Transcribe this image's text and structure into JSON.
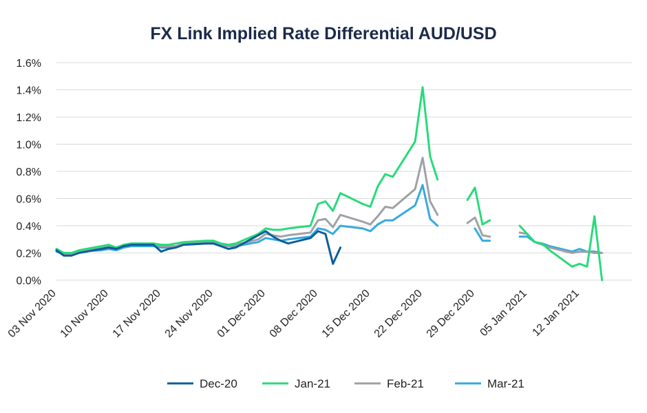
{
  "chart_data": {
    "type": "line",
    "title": "FX Link Implied Rate Differential AUD/USD",
    "xlabel": "",
    "ylabel": "",
    "ylim": [
      0,
      1.6
    ],
    "yticks": [
      "0.0%",
      "0.2%",
      "0.4%",
      "0.6%",
      "0.8%",
      "1.0%",
      "1.2%",
      "1.4%",
      "1.6%"
    ],
    "xlim": [
      "2020-11-03",
      "2021-01-19"
    ],
    "xticks": [
      {
        "date": "2020-11-03",
        "label": "03 Nov 2020"
      },
      {
        "date": "2020-11-10",
        "label": "10 Nov 2020"
      },
      {
        "date": "2020-11-17",
        "label": "17 Nov 2020"
      },
      {
        "date": "2020-11-24",
        "label": "24 Nov 2020"
      },
      {
        "date": "2020-12-01",
        "label": "01 Dec 2020"
      },
      {
        "date": "2020-12-08",
        "label": "08 Dec 2020"
      },
      {
        "date": "2020-12-15",
        "label": "15 Dec 2020"
      },
      {
        "date": "2020-12-22",
        "label": "22 Dec 2020"
      },
      {
        "date": "2020-12-29",
        "label": "29 Dec 2020"
      },
      {
        "date": "2021-01-05",
        "label": "05 Jan 2021"
      },
      {
        "date": "2021-01-12",
        "label": "12 Jan 2021"
      }
    ],
    "grid": "horizontal",
    "legend_position": "bottom",
    "series": [
      {
        "name": "Dec-20",
        "color": "#0e5d99",
        "segments": [
          [
            [
              "2020-11-03",
              0.22
            ],
            [
              "2020-11-04",
              0.18
            ],
            [
              "2020-11-05",
              0.18
            ],
            [
              "2020-11-06",
              0.2
            ],
            [
              "2020-11-09",
              0.23
            ],
            [
              "2020-11-10",
              0.24
            ],
            [
              "2020-11-11",
              0.23
            ],
            [
              "2020-11-12",
              0.25
            ],
            [
              "2020-11-13",
              0.26
            ],
            [
              "2020-11-16",
              0.26
            ],
            [
              "2020-11-17",
              0.21
            ],
            [
              "2020-11-18",
              0.23
            ],
            [
              "2020-11-19",
              0.24
            ],
            [
              "2020-11-20",
              0.26
            ],
            [
              "2020-11-23",
              0.27
            ],
            [
              "2020-11-24",
              0.27
            ],
            [
              "2020-11-25",
              0.25
            ],
            [
              "2020-11-26",
              0.23
            ],
            [
              "2020-11-27",
              0.24
            ],
            [
              "2020-11-30",
              0.33
            ],
            [
              "2020-12-01",
              0.36
            ],
            [
              "2020-12-02",
              0.32
            ],
            [
              "2020-12-03",
              0.29
            ],
            [
              "2020-12-04",
              0.27
            ],
            [
              "2020-12-07",
              0.31
            ],
            [
              "2020-12-08",
              0.36
            ],
            [
              "2020-12-09",
              0.34
            ],
            [
              "2020-12-10",
              0.12
            ],
            [
              "2020-12-11",
              0.24
            ]
          ]
        ]
      },
      {
        "name": "Jan-21",
        "color": "#27db7a",
        "segments": [
          [
            [
              "2020-11-03",
              0.23
            ],
            [
              "2020-11-04",
              0.2
            ],
            [
              "2020-11-05",
              0.2
            ],
            [
              "2020-11-06",
              0.22
            ],
            [
              "2020-11-09",
              0.25
            ],
            [
              "2020-11-10",
              0.26
            ],
            [
              "2020-11-11",
              0.24
            ],
            [
              "2020-11-12",
              0.26
            ],
            [
              "2020-11-13",
              0.27
            ],
            [
              "2020-11-16",
              0.27
            ],
            [
              "2020-11-17",
              0.26
            ],
            [
              "2020-11-18",
              0.26
            ],
            [
              "2020-11-19",
              0.27
            ],
            [
              "2020-11-20",
              0.28
            ],
            [
              "2020-11-23",
              0.29
            ],
            [
              "2020-11-24",
              0.29
            ],
            [
              "2020-11-25",
              0.27
            ],
            [
              "2020-11-26",
              0.26
            ],
            [
              "2020-11-27",
              0.27
            ],
            [
              "2020-11-30",
              0.34
            ],
            [
              "2020-12-01",
              0.38
            ],
            [
              "2020-12-02",
              0.37
            ],
            [
              "2020-12-03",
              0.37
            ],
            [
              "2020-12-04",
              0.38
            ],
            [
              "2020-12-07",
              0.4
            ],
            [
              "2020-12-08",
              0.56
            ],
            [
              "2020-12-09",
              0.58
            ],
            [
              "2020-12-10",
              0.51
            ],
            [
              "2020-12-11",
              0.64
            ],
            [
              "2020-12-14",
              0.56
            ],
            [
              "2020-12-15",
              0.54
            ],
            [
              "2020-12-16",
              0.69
            ],
            [
              "2020-12-17",
              0.78
            ],
            [
              "2020-12-18",
              0.76
            ],
            [
              "2020-12-21",
              1.02
            ],
            [
              "2020-12-22",
              1.42
            ],
            [
              "2020-12-23",
              0.91
            ],
            [
              "2020-12-24",
              0.74
            ]
          ],
          [
            [
              "2020-12-28",
              0.59
            ],
            [
              "2020-12-29",
              0.68
            ],
            [
              "2020-12-30",
              0.41
            ],
            [
              "2020-12-31",
              0.44
            ]
          ],
          [
            [
              "2021-01-04",
              0.4
            ],
            [
              "2021-01-05",
              0.34
            ],
            [
              "2021-01-06",
              0.28
            ],
            [
              "2021-01-07",
              0.27
            ],
            [
              "2021-01-08",
              0.22
            ],
            [
              "2021-01-11",
              0.1
            ],
            [
              "2021-01-12",
              0.12
            ],
            [
              "2021-01-13",
              0.1
            ],
            [
              "2021-01-14",
              0.47
            ],
            [
              "2021-01-15",
              0.0
            ]
          ]
        ]
      },
      {
        "name": "Feb-21",
        "color": "#9ea1a6",
        "segments": [
          [
            [
              "2020-11-03",
              0.22
            ],
            [
              "2020-11-04",
              0.19
            ],
            [
              "2020-11-05",
              0.19
            ],
            [
              "2020-11-06",
              0.21
            ],
            [
              "2020-11-09",
              0.24
            ],
            [
              "2020-11-10",
              0.25
            ],
            [
              "2020-11-11",
              0.23
            ],
            [
              "2020-11-12",
              0.26
            ],
            [
              "2020-11-13",
              0.27
            ],
            [
              "2020-11-16",
              0.27
            ],
            [
              "2020-11-17",
              0.25
            ],
            [
              "2020-11-18",
              0.25
            ],
            [
              "2020-11-19",
              0.25
            ],
            [
              "2020-11-20",
              0.27
            ],
            [
              "2020-11-23",
              0.28
            ],
            [
              "2020-11-24",
              0.28
            ],
            [
              "2020-11-25",
              0.26
            ],
            [
              "2020-11-26",
              0.25
            ],
            [
              "2020-11-27",
              0.26
            ],
            [
              "2020-11-30",
              0.3
            ],
            [
              "2020-12-01",
              0.34
            ],
            [
              "2020-12-02",
              0.33
            ],
            [
              "2020-12-03",
              0.32
            ],
            [
              "2020-12-04",
              0.33
            ],
            [
              "2020-12-07",
              0.35
            ],
            [
              "2020-12-08",
              0.44
            ],
            [
              "2020-12-09",
              0.45
            ],
            [
              "2020-12-10",
              0.39
            ],
            [
              "2020-12-11",
              0.48
            ],
            [
              "2020-12-14",
              0.43
            ],
            [
              "2020-12-15",
              0.41
            ],
            [
              "2020-12-16",
              0.47
            ],
            [
              "2020-12-17",
              0.54
            ],
            [
              "2020-12-18",
              0.53
            ],
            [
              "2020-12-21",
              0.67
            ],
            [
              "2020-12-22",
              0.9
            ],
            [
              "2020-12-23",
              0.58
            ],
            [
              "2020-12-24",
              0.48
            ]
          ],
          [
            [
              "2020-12-28",
              0.42
            ],
            [
              "2020-12-29",
              0.46
            ],
            [
              "2020-12-30",
              0.33
            ],
            [
              "2020-12-31",
              0.32
            ]
          ],
          [
            [
              "2021-01-04",
              0.35
            ],
            [
              "2021-01-05",
              0.34
            ],
            [
              "2021-01-06",
              0.28
            ],
            [
              "2021-01-07",
              0.26
            ],
            [
              "2021-01-08",
              0.24
            ],
            [
              "2021-01-11",
              0.2
            ],
            [
              "2021-01-12",
              0.21
            ],
            [
              "2021-01-13",
              0.21
            ],
            [
              "2021-01-14",
              0.2
            ],
            [
              "2021-01-15",
              0.2
            ]
          ]
        ]
      },
      {
        "name": "Mar-21",
        "color": "#35a9e0",
        "segments": [
          [
            [
              "2020-11-03",
              0.21
            ],
            [
              "2020-11-04",
              0.19
            ],
            [
              "2020-11-05",
              0.19
            ],
            [
              "2020-11-06",
              0.21
            ],
            [
              "2020-11-09",
              0.22
            ],
            [
              "2020-11-10",
              0.23
            ],
            [
              "2020-11-11",
              0.22
            ],
            [
              "2020-11-12",
              0.24
            ],
            [
              "2020-11-13",
              0.25
            ],
            [
              "2020-11-16",
              0.25
            ],
            [
              "2020-11-17",
              0.24
            ],
            [
              "2020-11-18",
              0.24
            ],
            [
              "2020-11-19",
              0.25
            ],
            [
              "2020-11-20",
              0.26
            ],
            [
              "2020-11-23",
              0.27
            ],
            [
              "2020-11-24",
              0.27
            ],
            [
              "2020-11-25",
              0.25
            ],
            [
              "2020-11-26",
              0.25
            ],
            [
              "2020-11-27",
              0.25
            ],
            [
              "2020-11-30",
              0.28
            ],
            [
              "2020-12-01",
              0.31
            ],
            [
              "2020-12-02",
              0.3
            ],
            [
              "2020-12-03",
              0.29
            ],
            [
              "2020-12-04",
              0.3
            ],
            [
              "2020-12-07",
              0.32
            ],
            [
              "2020-12-08",
              0.38
            ],
            [
              "2020-12-09",
              0.37
            ],
            [
              "2020-12-10",
              0.34
            ],
            [
              "2020-12-11",
              0.4
            ],
            [
              "2020-12-14",
              0.38
            ],
            [
              "2020-12-15",
              0.36
            ],
            [
              "2020-12-16",
              0.41
            ],
            [
              "2020-12-17",
              0.44
            ],
            [
              "2020-12-18",
              0.44
            ],
            [
              "2020-12-21",
              0.55
            ],
            [
              "2020-12-22",
              0.7
            ],
            [
              "2020-12-23",
              0.45
            ],
            [
              "2020-12-24",
              0.4
            ]
          ],
          [
            [
              "2020-12-29",
              0.38
            ],
            [
              "2020-12-30",
              0.29
            ],
            [
              "2020-12-31",
              0.29
            ]
          ],
          [
            [
              "2021-01-04",
              0.32
            ],
            [
              "2021-01-05",
              0.32
            ],
            [
              "2021-01-06",
              0.28
            ],
            [
              "2021-01-07",
              0.27
            ],
            [
              "2021-01-08",
              0.25
            ],
            [
              "2021-01-11",
              0.21
            ],
            [
              "2021-01-12",
              0.23
            ],
            [
              "2021-01-13",
              0.21
            ],
            [
              "2021-01-14",
              0.21
            ],
            [
              "2021-01-15",
              0.2
            ]
          ]
        ]
      }
    ]
  }
}
